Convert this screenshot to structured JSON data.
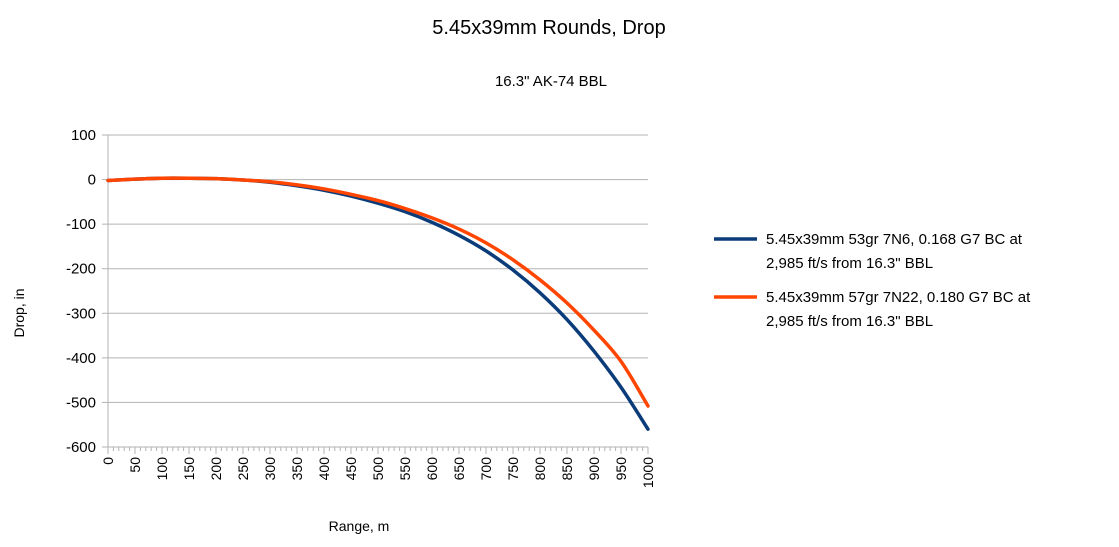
{
  "chart_data": {
    "type": "line",
    "title": "5.45x39mm Rounds, Drop",
    "subtitle": "16.3\" AK-74 BBL",
    "xlabel": "Range, m",
    "ylabel": "Drop, in",
    "xlim": [
      0,
      1000
    ],
    "ylim": [
      -600,
      100
    ],
    "y_ticks": [
      "100",
      "0",
      "-100",
      "-200",
      "-300",
      "-400",
      "-500",
      "-600"
    ],
    "x_ticks": [
      "0",
      "50",
      "100",
      "150",
      "200",
      "250",
      "300",
      "350",
      "400",
      "450",
      "500",
      "550",
      "600",
      "650",
      "700",
      "750",
      "800",
      "850",
      "900",
      "950",
      "1000"
    ],
    "grid": "horizontal",
    "legend_position": "right",
    "x": [
      0,
      50,
      100,
      150,
      200,
      250,
      300,
      350,
      400,
      450,
      500,
      550,
      600,
      650,
      700,
      750,
      800,
      850,
      900,
      950,
      1000
    ],
    "series": [
      {
        "name_lines": [
          "5.45x39mm 53gr 7N6, 0.168 G7 BC at",
          "2,985 ft/s from 16.3\" BBL"
        ],
        "color": "#0b3c7a",
        "values": [
          -2,
          1,
          3,
          3,
          2,
          -1,
          -6,
          -14,
          -24,
          -37,
          -53,
          -72,
          -96,
          -125,
          -160,
          -203,
          -254,
          -314,
          -385,
          -466,
          -560
        ]
      },
      {
        "name_lines": [
          "5.45x39mm 57gr 7N22, 0.180 G7 BC at",
          "2,985 ft/s from 16.3\" BBL"
        ],
        "color": "#ff4500",
        "values": [
          -2,
          1,
          3,
          3,
          2,
          -1,
          -5,
          -12,
          -21,
          -33,
          -47,
          -65,
          -86,
          -111,
          -142,
          -180,
          -225,
          -277,
          -338,
          -408,
          -508
        ]
      }
    ]
  }
}
